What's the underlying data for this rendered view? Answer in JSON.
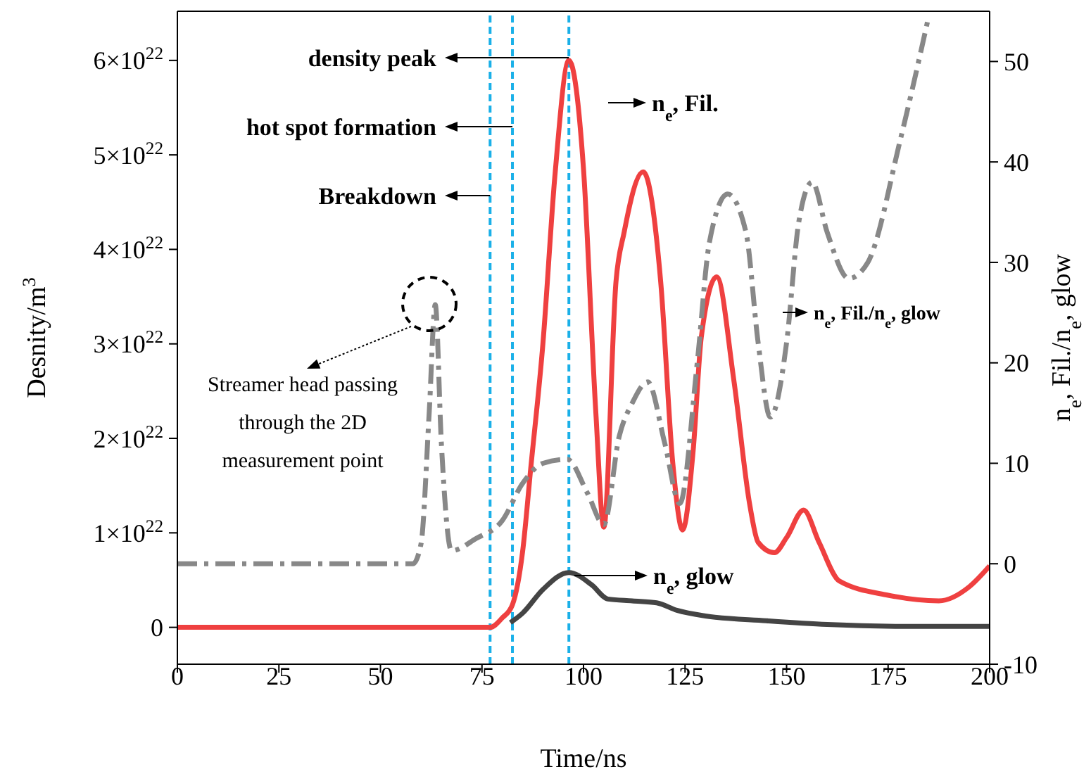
{
  "chart_data": {
    "type": "line",
    "xlabel": "Time/ns",
    "ylabel": "Desnity/m$^{3}$",
    "y2label": "n$_{e}$, Fil./n$_{e}$, glow",
    "xlim": [
      0,
      200
    ],
    "xticks": [
      0,
      25,
      50,
      75,
      100,
      125,
      150,
      175,
      200
    ],
    "ylim": [
      -3.9e+21,
      6.52e+22
    ],
    "yticks": [
      0,
      {
        "value": 1e+22,
        "label": "1×10$^{22}$"
      },
      {
        "value": 2e+22,
        "label": "2×10$^{22}$"
      },
      {
        "value": 3e+22,
        "label": "3×10$^{22}$"
      },
      {
        "value": 4e+22,
        "label": "4×10$^{22}$"
      },
      {
        "value": 5e+22,
        "label": "5×10$^{22}$"
      },
      {
        "value": 6e+22,
        "label": "6×10$^{22}$"
      }
    ],
    "y2lim": [
      -10,
      55
    ],
    "y2ticks": [
      -10,
      0,
      10,
      20,
      30,
      40,
      50
    ],
    "marker": "none",
    "series": [
      {
        "name": "n$_{e}$, Fil.",
        "color": "#ef4040",
        "line_style": "solid",
        "x": [
          0,
          20,
          40,
          60,
          70,
          75,
          77,
          80,
          82.5,
          85,
          87,
          90,
          93,
          96.4,
          100,
          103,
          105,
          108,
          110,
          114.7,
          119,
          122,
          124.4,
          127,
          129,
          132.8,
          137,
          141,
          143,
          147,
          150,
          154.2,
          158,
          163,
          175,
          187.5,
          195,
          200
        ],
        "values": [
          0,
          0,
          0,
          0,
          0,
          0,
          0,
          1e+21,
          2.4e+21,
          8e+21,
          1.68e+22,
          3e+22,
          4.8e+22,
          6e+22,
          4.85e+22,
          2.3e+22,
          1.06e+22,
          3.66e+22,
          4.18e+22,
          4.82e+22,
          3.66e+22,
          1.73e+22,
          1.03e+22,
          1.87e+22,
          3.07e+22,
          3.71e+22,
          2.62e+22,
          1.28e+22,
          9e+21,
          7.9e+21,
          9.5e+21,
          1.24e+22,
          9e+21,
          4.9e+21,
          3.4e+21,
          2.8e+21,
          4.3e+21,
          6.5e+21
        ]
      },
      {
        "name": "n$_{e}$, glow",
        "color": "#444444",
        "line_style": "solid",
        "x": [
          82,
          85,
          90,
          96.4,
          102,
          106,
          112,
          118,
          123,
          130,
          145,
          160,
          180,
          200
        ],
        "values": [
          5e+20,
          1.5e+21,
          4e+21,
          5.8e+21,
          4.5e+21,
          3e+21,
          2.8e+21,
          2.6e+21,
          1.8e+21,
          1.2e+21,
          7e+20,
          3e+20,
          1e+20,
          1e+20
        ]
      },
      {
        "name": "n$_{e}$, Fil./n$_{e}$, glow",
        "color": "#888888",
        "axis": "y2",
        "line_style": "dashed",
        "x": [
          0,
          30,
          58,
          60,
          62,
          63.5,
          65,
          67.5,
          73.5,
          80,
          85,
          90,
          96,
          101,
          105,
          108.8,
          112,
          115.8,
          120,
          123.7,
          128,
          131,
          135.5,
          140,
          143,
          146,
          150,
          153,
          156.3,
          160,
          165.3,
          170,
          178,
          185
        ],
        "values": [
          0,
          0,
          0,
          2,
          15,
          25.8,
          12,
          1.3,
          2.5,
          4.3,
          8,
          10,
          10.4,
          7,
          3.9,
          12.7,
          16,
          18.1,
          12,
          6,
          20,
          32,
          36.8,
          33,
          22,
          14.6,
          22,
          34,
          38,
          33,
          28.4,
          30,
          42.2,
          54.5
        ]
      }
    ],
    "ref_lines": [
      {
        "axis": "x",
        "value": 77,
        "label": "Breakdown",
        "color": "#1ab0e8",
        "line_style": "dashed"
      },
      {
        "axis": "x",
        "value": 82.5,
        "label": "hot spot formation",
        "color": "#1ab0e8",
        "line_style": "dashed"
      },
      {
        "axis": "x",
        "value": 96.4,
        "label": "density peak",
        "color": "#1ab0e8",
        "line_style": "dashed"
      }
    ],
    "annotations": [
      "Streamer head passing through the 2D measurement point"
    ]
  }
}
